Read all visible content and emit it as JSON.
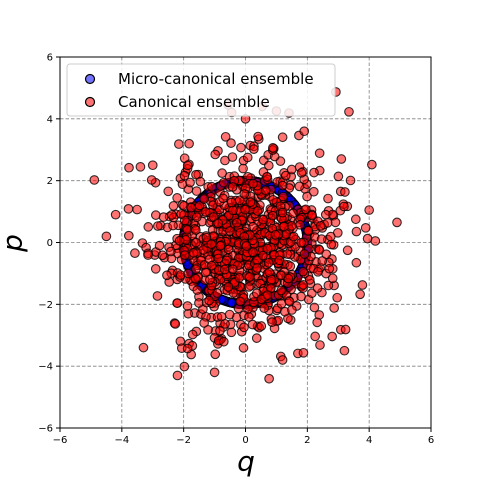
{
  "chart_data": {
    "type": "scatter",
    "title": "",
    "xlabel": "q",
    "ylabel": "p",
    "xlim": [
      -6,
      6
    ],
    "ylim": [
      -6,
      6
    ],
    "xticks": [
      -6,
      -4,
      -2,
      0,
      2,
      4,
      6
    ],
    "yticks": [
      -6,
      -4,
      -2,
      0,
      2,
      4,
      6
    ],
    "tick_labels_x": [
      "−6",
      "−4",
      "−2",
      "0",
      "2",
      "4",
      "6"
    ],
    "tick_labels_y": [
      "−6",
      "−4",
      "−2",
      "0",
      "2",
      "4",
      "6"
    ],
    "grid": true,
    "grid_style": "dashed",
    "legend_position": "top-left",
    "series": [
      {
        "name": "Micro-canonical ensemble",
        "color": "#0000ff",
        "edge_color": "#000000",
        "alpha": 0.55,
        "shape": "ring",
        "radius": 2,
        "count": 1000,
        "seed": 7
      },
      {
        "name": "Canonical ensemble",
        "color": "#ff0000",
        "edge_color": "#000000",
        "alpha": 0.55,
        "shape": "gaussian",
        "mean": [
          0,
          0
        ],
        "std": [
          1.41,
          1.41
        ],
        "count": 1000,
        "seed": 11,
        "sample_points": [
          {
            "x": 4.9,
            "y": 0.65
          },
          {
            "x": 4.2,
            "y": 0.05
          },
          {
            "x": 4.0,
            "y": 1.05
          },
          {
            "x": -4.5,
            "y": 0.2
          },
          {
            "x": -4.2,
            "y": 0.9
          },
          {
            "x": 1.0,
            "y": 4.25
          },
          {
            "x": 0.0,
            "y": 4.0
          },
          {
            "x": -2.2,
            "y": -4.3
          },
          {
            "x": -1.0,
            "y": -4.2
          },
          {
            "x": 1.2,
            "y": -3.8
          },
          {
            "x": 3.2,
            "y": -3.5
          },
          {
            "x": -3.3,
            "y": -3.4
          },
          {
            "x": -3.0,
            "y": 2.5
          },
          {
            "x": 3.1,
            "y": 2.7
          },
          {
            "x": 1.9,
            "y": 3.6
          }
        ]
      }
    ]
  }
}
